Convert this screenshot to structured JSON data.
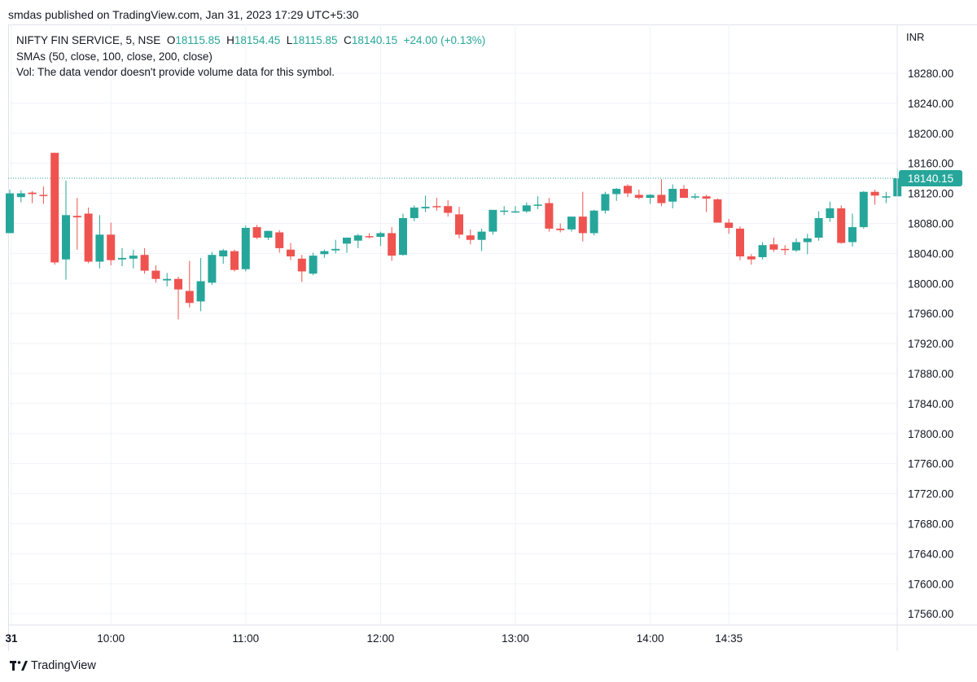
{
  "published": "smdas published on TradingView.com, Jan 31, 2023 17:29 UTC+5:30",
  "legend": {
    "symbol": "NIFTY FIN SERVICE, 5, NSE",
    "o_label": "O",
    "o_value": "18115.85",
    "h_label": "H",
    "h_value": "18154.45",
    "l_label": "L",
    "l_value": "18115.85",
    "c_label": "C",
    "c_value": "18140.15",
    "change": "+24.00 (+0.13%)",
    "indicator": "SMAs (50, close, 100, close, 200, close)",
    "volume_note": "Vol: The data vendor doesn't provide volume data for this symbol."
  },
  "footer": {
    "brand": "TradingView"
  },
  "colors": {
    "up": "#26a69a",
    "down": "#ef5350",
    "grid": "#f0f3fa",
    "axis_text": "#131722"
  },
  "chart_data": {
    "type": "candlestick",
    "currency": "INR",
    "ylim": [
      17545,
      18345
    ],
    "y_ticks": [
      18280,
      18240,
      18200,
      18160,
      18120,
      18080,
      18040,
      18000,
      17960,
      17920,
      17880,
      17840,
      17800,
      17760,
      17720,
      17680,
      17640,
      17600,
      17560
    ],
    "y_tick_labels": [
      "18280.00",
      "18240.00",
      "18200.00",
      "18160.00",
      "18120.00",
      "18080.00",
      "18040.00",
      "18000.00",
      "17960.00",
      "17920.00",
      "17880.00",
      "17840.00",
      "17800.00",
      "17760.00",
      "17720.00",
      "17680.00",
      "17640.00",
      "17600.00",
      "17560.00"
    ],
    "x_ticks": [
      {
        "index": 0,
        "label": "31",
        "bold": true
      },
      {
        "index": 9,
        "label": "10:00"
      },
      {
        "index": 21,
        "label": "11:00"
      },
      {
        "index": 33,
        "label": "12:00"
      },
      {
        "index": 45,
        "label": "13:00"
      },
      {
        "index": 57,
        "label": "14:00"
      },
      {
        "index": 64,
        "label": "14:35"
      }
    ],
    "last_price": 18140.15,
    "last_price_label": "18140.15",
    "candles": [
      {
        "o": 18067,
        "h": 18125,
        "l": 18067,
        "c": 18120
      },
      {
        "o": 18115,
        "h": 18124,
        "l": 18108,
        "c": 18120
      },
      {
        "o": 18121,
        "h": 18123,
        "l": 18107,
        "c": 18119
      },
      {
        "o": 18118,
        "h": 18129,
        "l": 18106,
        "c": 18117
      },
      {
        "o": 18174,
        "h": 18174,
        "l": 18025,
        "c": 18028
      },
      {
        "o": 18032,
        "h": 18137,
        "l": 18005,
        "c": 18091
      },
      {
        "o": 18090,
        "h": 18114,
        "l": 18045,
        "c": 18088
      },
      {
        "o": 18093,
        "h": 18101,
        "l": 18027,
        "c": 18029
      },
      {
        "o": 18029,
        "h": 18091,
        "l": 18020,
        "c": 18065
      },
      {
        "o": 18065,
        "h": 18081,
        "l": 18024,
        "c": 18031
      },
      {
        "o": 18032,
        "h": 18047,
        "l": 18023,
        "c": 18034
      },
      {
        "o": 18033,
        "h": 18045,
        "l": 18020,
        "c": 18037
      },
      {
        "o": 18038,
        "h": 18047,
        "l": 18013,
        "c": 18017
      },
      {
        "o": 18017,
        "h": 18024,
        "l": 18001,
        "c": 18006
      },
      {
        "o": 18004,
        "h": 18014,
        "l": 17996,
        "c": 18006
      },
      {
        "o": 18006,
        "h": 18009,
        "l": 17952,
        "c": 17992
      },
      {
        "o": 17990,
        "h": 18030,
        "l": 17968,
        "c": 17974
      },
      {
        "o": 17976,
        "h": 18034,
        "l": 17963,
        "c": 18003
      },
      {
        "o": 18001,
        "h": 18042,
        "l": 17998,
        "c": 18038
      },
      {
        "o": 18036,
        "h": 18046,
        "l": 18026,
        "c": 18044
      },
      {
        "o": 18043,
        "h": 18045,
        "l": 18016,
        "c": 18018
      },
      {
        "o": 18019,
        "h": 18077,
        "l": 18016,
        "c": 18074
      },
      {
        "o": 18075,
        "h": 18078,
        "l": 18059,
        "c": 18061
      },
      {
        "o": 18061,
        "h": 18070,
        "l": 18058,
        "c": 18070
      },
      {
        "o": 18068,
        "h": 18071,
        "l": 18041,
        "c": 18047
      },
      {
        "o": 18045,
        "h": 18054,
        "l": 18031,
        "c": 18036
      },
      {
        "o": 18033,
        "h": 18038,
        "l": 18002,
        "c": 18016
      },
      {
        "o": 18013,
        "h": 18041,
        "l": 18011,
        "c": 18037
      },
      {
        "o": 18039,
        "h": 18045,
        "l": 18034,
        "c": 18043
      },
      {
        "o": 18044,
        "h": 18058,
        "l": 18040,
        "c": 18046
      },
      {
        "o": 18053,
        "h": 18060,
        "l": 18041,
        "c": 18061
      },
      {
        "o": 18057,
        "h": 18066,
        "l": 18047,
        "c": 18064
      },
      {
        "o": 18063,
        "h": 18067,
        "l": 18060,
        "c": 18062
      },
      {
        "o": 18062,
        "h": 18069,
        "l": 18050,
        "c": 18067
      },
      {
        "o": 18067,
        "h": 18075,
        "l": 18030,
        "c": 18037
      },
      {
        "o": 18038,
        "h": 18093,
        "l": 18037,
        "c": 18087
      },
      {
        "o": 18087,
        "h": 18104,
        "l": 18083,
        "c": 18101
      },
      {
        "o": 18100,
        "h": 18117,
        "l": 18095,
        "c": 18102
      },
      {
        "o": 18103,
        "h": 18114,
        "l": 18097,
        "c": 18102
      },
      {
        "o": 18103,
        "h": 18111,
        "l": 18089,
        "c": 18094
      },
      {
        "o": 18092,
        "h": 18102,
        "l": 18060,
        "c": 18065
      },
      {
        "o": 18064,
        "h": 18072,
        "l": 18052,
        "c": 18058
      },
      {
        "o": 18058,
        "h": 18073,
        "l": 18043,
        "c": 18069
      },
      {
        "o": 18069,
        "h": 18095,
        "l": 18065,
        "c": 18098
      },
      {
        "o": 18096,
        "h": 18103,
        "l": 18091,
        "c": 18097
      },
      {
        "o": 18095,
        "h": 18103,
        "l": 18094,
        "c": 18096
      },
      {
        "o": 18096,
        "h": 18108,
        "l": 18094,
        "c": 18104
      },
      {
        "o": 18104,
        "h": 18116,
        "l": 18099,
        "c": 18105
      },
      {
        "o": 18107,
        "h": 18114,
        "l": 18069,
        "c": 18073
      },
      {
        "o": 18073,
        "h": 18080,
        "l": 18068,
        "c": 18071
      },
      {
        "o": 18072,
        "h": 18087,
        "l": 18069,
        "c": 18089
      },
      {
        "o": 18089,
        "h": 18122,
        "l": 18056,
        "c": 18067
      },
      {
        "o": 18067,
        "h": 18098,
        "l": 18064,
        "c": 18097
      },
      {
        "o": 18097,
        "h": 18122,
        "l": 18093,
        "c": 18119
      },
      {
        "o": 18119,
        "h": 18127,
        "l": 18110,
        "c": 18126
      },
      {
        "o": 18130,
        "h": 18132,
        "l": 18115,
        "c": 18120
      },
      {
        "o": 18118,
        "h": 18125,
        "l": 18112,
        "c": 18114
      },
      {
        "o": 18114,
        "h": 18119,
        "l": 18106,
        "c": 18118
      },
      {
        "o": 18118,
        "h": 18139,
        "l": 18103,
        "c": 18107
      },
      {
        "o": 18109,
        "h": 18132,
        "l": 18100,
        "c": 18126
      },
      {
        "o": 18126,
        "h": 18131,
        "l": 18114,
        "c": 18114
      },
      {
        "o": 18116,
        "h": 18120,
        "l": 18112,
        "c": 18116
      },
      {
        "o": 18116,
        "h": 18118,
        "l": 18095,
        "c": 18113
      },
      {
        "o": 18112,
        "h": 18113,
        "l": 18081,
        "c": 18081
      },
      {
        "o": 18081,
        "h": 18086,
        "l": 18066,
        "c": 18074
      },
      {
        "o": 18073,
        "h": 18076,
        "l": 18031,
        "c": 18036
      },
      {
        "o": 18036,
        "h": 18039,
        "l": 18025,
        "c": 18032
      },
      {
        "o": 18035,
        "h": 18055,
        "l": 18032,
        "c": 18051
      },
      {
        "o": 18052,
        "h": 18061,
        "l": 18042,
        "c": 18045
      },
      {
        "o": 18046,
        "h": 18051,
        "l": 18038,
        "c": 18045
      },
      {
        "o": 18044,
        "h": 18060,
        "l": 18042,
        "c": 18055
      },
      {
        "o": 18055,
        "h": 18066,
        "l": 18039,
        "c": 18060
      },
      {
        "o": 18061,
        "h": 18096,
        "l": 18057,
        "c": 18087
      },
      {
        "o": 18087,
        "h": 18109,
        "l": 18082,
        "c": 18100
      },
      {
        "o": 18100,
        "h": 18104,
        "l": 18053,
        "c": 18054
      },
      {
        "o": 18055,
        "h": 18093,
        "l": 18049,
        "c": 18075
      },
      {
        "o": 18075,
        "h": 18123,
        "l": 18073,
        "c": 18122
      },
      {
        "o": 18122,
        "h": 18125,
        "l": 18105,
        "c": 18117
      },
      {
        "o": 18115,
        "h": 18122,
        "l": 18107,
        "c": 18116
      },
      {
        "o": 18116,
        "h": 18154,
        "l": 18116,
        "c": 18140
      }
    ]
  }
}
